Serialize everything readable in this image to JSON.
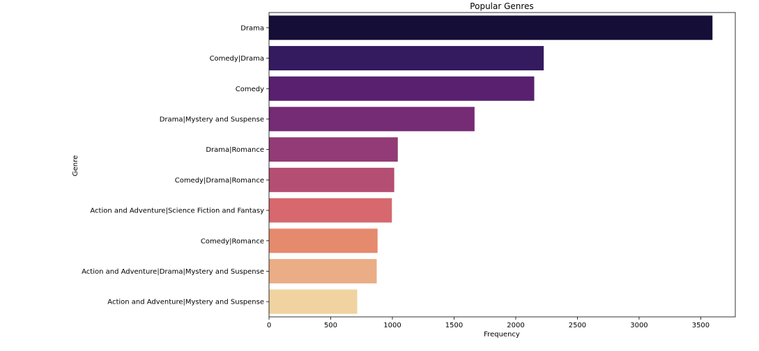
{
  "chart_data": {
    "type": "bar",
    "orientation": "horizontal",
    "title": "Popular Genres",
    "xlabel": "Frequency",
    "ylabel": "Genre",
    "categories": [
      "Drama",
      "Comedy|Drama",
      "Comedy",
      "Drama|Mystery and Suspense",
      "Drama|Romance",
      "Comedy|Drama|Romance",
      "Action and Adventure|Science Fiction and Fantasy",
      "Comedy|Romance",
      "Action and Adventure|Drama|Mystery and Suspense",
      "Action and Adventure|Mystery and Suspense"
    ],
    "values": [
      3595,
      2227,
      2150,
      1666,
      1044,
      1015,
      996,
      880,
      873,
      715
    ],
    "colors": [
      "#150e37",
      "#341a5f",
      "#58206f",
      "#762b75",
      "#933b76",
      "#b54e73",
      "#d6686e",
      "#e68a6e",
      "#ebad86",
      "#f0d3a0"
    ],
    "xlim": [
      0,
      3780
    ],
    "xticks": [
      0,
      500,
      1000,
      1500,
      2000,
      2500,
      3000,
      3500
    ],
    "xtick_labels": [
      "0",
      "500",
      "1000",
      "1500",
      "2000",
      "2500",
      "3000",
      "3500"
    ],
    "grid": false,
    "legend": "none"
  }
}
